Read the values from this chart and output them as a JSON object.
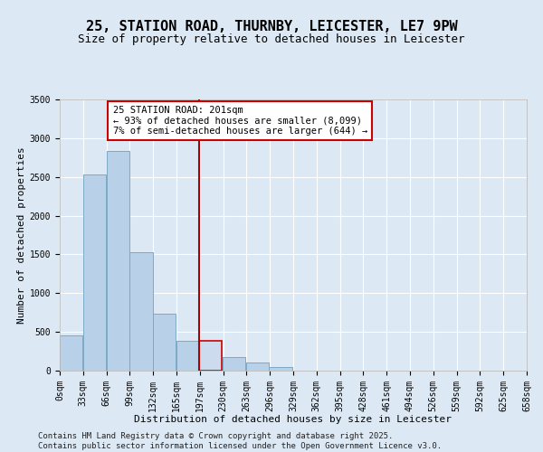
{
  "title_line1": "25, STATION ROAD, THURNBY, LEICESTER, LE7 9PW",
  "title_line2": "Size of property relative to detached houses in Leicester",
  "xlabel": "Distribution of detached houses by size in Leicester",
  "ylabel": "Number of detached properties",
  "bar_color": "#b8d0e8",
  "bar_edge_color": "#7aaac8",
  "highlight_bar_color": "#ccdcee",
  "highlight_bar_edge_color": "#cc0000",
  "vline_color": "#aa0000",
  "vline_x": 197,
  "annotation_text": "25 STATION ROAD: 201sqm\n← 93% of detached houses are smaller (8,099)\n7% of semi-detached houses are larger (644) →",
  "annotation_box_facecolor": "#ffffff",
  "annotation_box_edgecolor": "#cc0000",
  "bins_left": [
    0,
    33,
    66,
    99,
    132,
    165,
    197,
    230,
    263,
    296,
    329,
    362,
    395,
    428,
    461,
    494,
    526,
    559,
    592,
    625
  ],
  "bin_width": 33,
  "bar_heights": [
    450,
    2530,
    2830,
    1530,
    730,
    390,
    390,
    170,
    100,
    50,
    0,
    0,
    0,
    0,
    0,
    0,
    0,
    0,
    0,
    0
  ],
  "highlight_bin_index": 6,
  "xlim": [
    0,
    658
  ],
  "ylim": [
    0,
    3500
  ],
  "yticks": [
    0,
    500,
    1000,
    1500,
    2000,
    2500,
    3000,
    3500
  ],
  "xtick_labels": [
    "0sqm",
    "33sqm",
    "66sqm",
    "99sqm",
    "132sqm",
    "165sqm",
    "197sqm",
    "230sqm",
    "263sqm",
    "296sqm",
    "329sqm",
    "362sqm",
    "395sqm",
    "428sqm",
    "461sqm",
    "494sqm",
    "526sqm",
    "559sqm",
    "592sqm",
    "625sqm",
    "658sqm"
  ],
  "background_color": "#dce9f5",
  "grid_color": "#ffffff",
  "footer_text": "Contains HM Land Registry data © Crown copyright and database right 2025.\nContains public sector information licensed under the Open Government Licence v3.0.",
  "title_fontsize": 11,
  "subtitle_fontsize": 9,
  "axis_label_fontsize": 8,
  "tick_fontsize": 7,
  "annotation_fontsize": 7.5,
  "footer_fontsize": 6.5
}
